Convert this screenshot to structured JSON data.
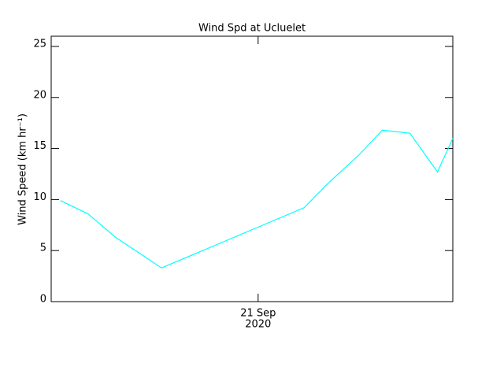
{
  "chart_data": {
    "type": "line",
    "title": "Wind Spd at Ucluelet",
    "y_label": "Wind Speed (km hr⁻¹)",
    "x": [
      "2020-09-20T02:30",
      "2020-09-20T05:30",
      "2020-09-20T08:30",
      "2020-09-20T13:30",
      "2020-09-21T05:00",
      "2020-09-21T07:30",
      "2020-09-21T11:00",
      "2020-09-21T13:30",
      "2020-09-21T16:30",
      "2020-09-21T19:30",
      "2020-09-21T21:10"
    ],
    "series": [
      {
        "color": "#00ffff",
        "values": [
          9.9,
          8.6,
          6.3,
          3.3,
          9.2,
          11.5,
          14.4,
          16.8,
          16.5,
          12.7,
          16.0
        ]
      }
    ],
    "xlim": [
      "2020-09-20T01:30",
      "2020-09-21T21:10"
    ],
    "xticks": [
      {
        "value": "2020-09-21T00:00",
        "label": [
          "21 Sep",
          "2020"
        ]
      }
    ],
    "ylim": [
      0,
      26
    ],
    "yticks": [
      0,
      5,
      10,
      15,
      20,
      25
    ]
  }
}
